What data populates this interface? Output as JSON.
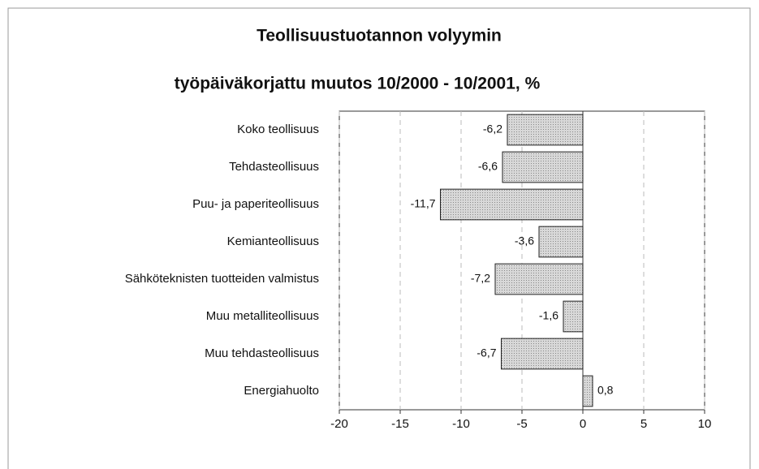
{
  "chart_data": {
    "type": "bar",
    "orientation": "horizontal",
    "title": "Teollisuustuotannon volyymin",
    "subtitle": "työpäiväkorjattu muutos 10/2000 - 10/2001, %",
    "categories": [
      "Koko teollisuus",
      "Tehdasteollisuus",
      "Puu- ja paperiteollisuus",
      "Kemianteollisuus",
      "Sähköteknisten tuotteiden valmistus",
      "Muu metalliteollisuus",
      "Muu tehdasteollisuus",
      "Energiahuolto"
    ],
    "values": [
      -6.2,
      -6.6,
      -11.7,
      -3.6,
      -7.2,
      -1.6,
      -6.7,
      0.8
    ],
    "value_labels": [
      "-6,2",
      "-6,6",
      "-11,7",
      "-3,6",
      "-7,2",
      "-1,6",
      "-6,7",
      "0,8"
    ],
    "color": "#c8c8c8",
    "xlim": [
      -20,
      10
    ],
    "xticks": [
      -20,
      -15,
      -10,
      -5,
      0,
      5,
      10
    ],
    "grid": true
  }
}
